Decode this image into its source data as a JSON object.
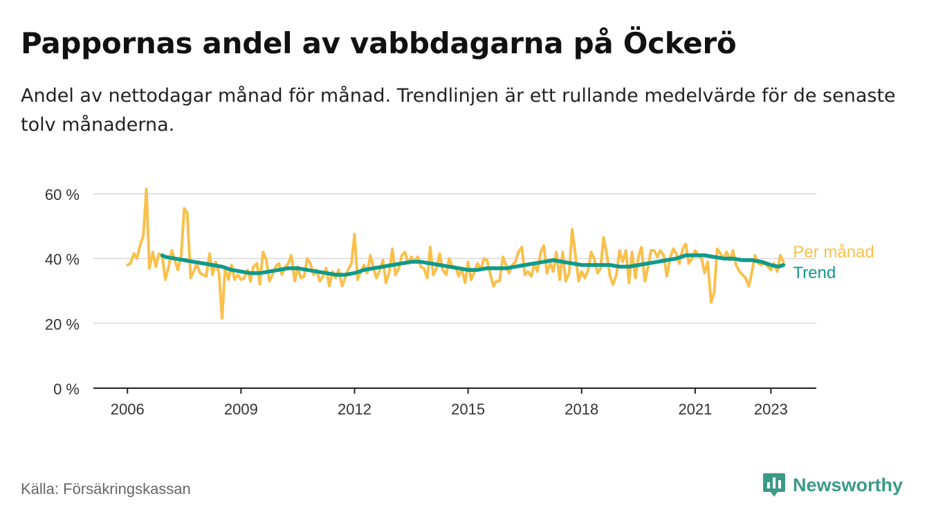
{
  "header": {
    "title": "Pappornas andel av vabbdagarna på Öckerö",
    "subtitle": "Andel av nettodagar månad för månad. Trendlinjen är ett rullande medelvärde för de senaste tolv månaderna."
  },
  "footer": {
    "source": "Källa: Försäkringskassan",
    "brand": "Newsworthy",
    "brand_icon": "bar-chart-bubble-icon",
    "brand_color": "#3a9a86"
  },
  "chart_data": {
    "type": "line",
    "x_range": [
      2005.1,
      2024.2
    ],
    "ylim": [
      0,
      60
    ],
    "y_ticks": [
      0,
      20,
      40,
      60
    ],
    "y_tick_labels": [
      "0 %",
      "20 %",
      "40 %",
      "60 %"
    ],
    "x_ticks": [
      2006,
      2009,
      2012,
      2015,
      2018,
      2021,
      2023
    ],
    "x_tick_labels": [
      "2006",
      "2009",
      "2012",
      "2015",
      "2018",
      "2021",
      "2023"
    ],
    "grid": "horizontal",
    "legend": "direct labels at line ends (right)",
    "series": [
      {
        "name": "Per månad",
        "color": "#f9c04c",
        "points": [
          [
            2006.0,
            38
          ],
          [
            2006.08,
            38.5
          ],
          [
            2006.17,
            41.5
          ],
          [
            2006.25,
            40
          ],
          [
            2006.33,
            44
          ],
          [
            2006.42,
            47
          ],
          [
            2006.5,
            61.5
          ],
          [
            2006.58,
            37
          ],
          [
            2006.67,
            42
          ],
          [
            2006.75,
            37.5
          ],
          [
            2006.83,
            41.5
          ],
          [
            2006.92,
            40.5
          ],
          [
            2007.0,
            33.5
          ],
          [
            2007.08,
            37
          ],
          [
            2007.17,
            42.5
          ],
          [
            2007.25,
            39.5
          ],
          [
            2007.33,
            36.5
          ],
          [
            2007.42,
            41
          ],
          [
            2007.5,
            55.5
          ],
          [
            2007.58,
            54
          ],
          [
            2007.67,
            34
          ],
          [
            2007.75,
            36
          ],
          [
            2007.83,
            38.5
          ],
          [
            2007.92,
            35.5
          ],
          [
            2008.0,
            35
          ],
          [
            2008.08,
            34.5
          ],
          [
            2008.17,
            41.5
          ],
          [
            2008.25,
            35
          ],
          [
            2008.33,
            39
          ],
          [
            2008.42,
            35.5
          ],
          [
            2008.5,
            21.5
          ],
          [
            2008.58,
            37
          ],
          [
            2008.67,
            33.5
          ],
          [
            2008.75,
            38
          ],
          [
            2008.83,
            33.5
          ],
          [
            2008.92,
            35
          ],
          [
            2009.0,
            33.5
          ],
          [
            2009.08,
            34
          ],
          [
            2009.17,
            36.5
          ],
          [
            2009.25,
            33
          ],
          [
            2009.33,
            37.5
          ],
          [
            2009.42,
            38.5
          ],
          [
            2009.5,
            32
          ],
          [
            2009.58,
            42
          ],
          [
            2009.67,
            39.5
          ],
          [
            2009.75,
            33
          ],
          [
            2009.83,
            35
          ],
          [
            2009.92,
            37.5
          ],
          [
            2010.0,
            38.5
          ],
          [
            2010.08,
            35
          ],
          [
            2010.17,
            37.5
          ],
          [
            2010.25,
            38.5
          ],
          [
            2010.33,
            41
          ],
          [
            2010.42,
            33
          ],
          [
            2010.5,
            37.5
          ],
          [
            2010.58,
            34
          ],
          [
            2010.67,
            34.5
          ],
          [
            2010.75,
            40
          ],
          [
            2010.83,
            38.5
          ],
          [
            2010.92,
            35
          ],
          [
            2011.0,
            36.5
          ],
          [
            2011.08,
            33
          ],
          [
            2011.17,
            34.5
          ],
          [
            2011.25,
            37
          ],
          [
            2011.33,
            31.5
          ],
          [
            2011.42,
            36
          ],
          [
            2011.5,
            34
          ],
          [
            2011.58,
            36.5
          ],
          [
            2011.67,
            31.5
          ],
          [
            2011.75,
            34
          ],
          [
            2011.83,
            36.5
          ],
          [
            2011.92,
            38.5
          ],
          [
            2012.0,
            47.5
          ],
          [
            2012.08,
            33.5
          ],
          [
            2012.17,
            36
          ],
          [
            2012.25,
            38
          ],
          [
            2012.33,
            35.5
          ],
          [
            2012.42,
            41
          ],
          [
            2012.5,
            37
          ],
          [
            2012.58,
            34
          ],
          [
            2012.67,
            36.5
          ],
          [
            2012.75,
            39.5
          ],
          [
            2012.83,
            32.5
          ],
          [
            2012.92,
            36
          ],
          [
            2013.0,
            43
          ],
          [
            2013.08,
            35
          ],
          [
            2013.17,
            37
          ],
          [
            2013.25,
            41
          ],
          [
            2013.33,
            42
          ],
          [
            2013.42,
            38.5
          ],
          [
            2013.5,
            40.5
          ],
          [
            2013.58,
            39
          ],
          [
            2013.67,
            40.5
          ],
          [
            2013.75,
            37.5
          ],
          [
            2013.83,
            37
          ],
          [
            2013.92,
            34
          ],
          [
            2014.0,
            43.5
          ],
          [
            2014.08,
            35
          ],
          [
            2014.17,
            37
          ],
          [
            2014.25,
            41.5
          ],
          [
            2014.33,
            36.5
          ],
          [
            2014.42,
            35
          ],
          [
            2014.5,
            40
          ],
          [
            2014.58,
            37.5
          ],
          [
            2014.67,
            37.5
          ],
          [
            2014.75,
            34.5
          ],
          [
            2014.83,
            37
          ],
          [
            2014.92,
            32.5
          ],
          [
            2015.0,
            39
          ],
          [
            2015.08,
            33.5
          ],
          [
            2015.17,
            36
          ],
          [
            2015.25,
            38.5
          ],
          [
            2015.33,
            36.5
          ],
          [
            2015.42,
            40
          ],
          [
            2015.5,
            39.5
          ],
          [
            2015.58,
            35.5
          ],
          [
            2015.67,
            31.5
          ],
          [
            2015.75,
            33
          ],
          [
            2015.83,
            33
          ],
          [
            2015.92,
            40.5
          ],
          [
            2016.0,
            38
          ],
          [
            2016.08,
            35.5
          ],
          [
            2016.17,
            38
          ],
          [
            2016.25,
            39
          ],
          [
            2016.33,
            42
          ],
          [
            2016.42,
            43.5
          ],
          [
            2016.5,
            35
          ],
          [
            2016.58,
            36
          ],
          [
            2016.67,
            34.5
          ],
          [
            2016.75,
            38.5
          ],
          [
            2016.83,
            36
          ],
          [
            2016.92,
            42
          ],
          [
            2017.0,
            44
          ],
          [
            2017.08,
            35.5
          ],
          [
            2017.17,
            38.5
          ],
          [
            2017.25,
            36
          ],
          [
            2017.33,
            42
          ],
          [
            2017.42,
            33.5
          ],
          [
            2017.5,
            42
          ],
          [
            2017.58,
            33
          ],
          [
            2017.67,
            35.5
          ],
          [
            2017.75,
            49
          ],
          [
            2017.83,
            41.5
          ],
          [
            2017.92,
            33
          ],
          [
            2018.0,
            36
          ],
          [
            2018.08,
            34
          ],
          [
            2018.17,
            36.5
          ],
          [
            2018.25,
            42
          ],
          [
            2018.33,
            40
          ],
          [
            2018.42,
            35.5
          ],
          [
            2018.5,
            37
          ],
          [
            2018.58,
            46.5
          ],
          [
            2018.67,
            41
          ],
          [
            2018.75,
            34.5
          ],
          [
            2018.83,
            32
          ],
          [
            2018.92,
            35
          ],
          [
            2019.0,
            42.5
          ],
          [
            2019.08,
            39
          ],
          [
            2019.17,
            42.5
          ],
          [
            2019.25,
            32.5
          ],
          [
            2019.33,
            42
          ],
          [
            2019.42,
            34
          ],
          [
            2019.5,
            40.5
          ],
          [
            2019.58,
            43.5
          ],
          [
            2019.67,
            33
          ],
          [
            2019.75,
            37
          ],
          [
            2019.83,
            42.5
          ],
          [
            2019.92,
            42.5
          ],
          [
            2020.0,
            40.5
          ],
          [
            2020.08,
            42.5
          ],
          [
            2020.17,
            41
          ],
          [
            2020.25,
            34.5
          ],
          [
            2020.33,
            40
          ],
          [
            2020.42,
            43
          ],
          [
            2020.5,
            41.5
          ],
          [
            2020.58,
            38.5
          ],
          [
            2020.67,
            43
          ],
          [
            2020.75,
            44.5
          ],
          [
            2020.83,
            38.5
          ],
          [
            2020.92,
            40
          ],
          [
            2021.0,
            42.5
          ],
          [
            2021.08,
            41
          ],
          [
            2021.17,
            40
          ],
          [
            2021.25,
            35.5
          ],
          [
            2021.33,
            39
          ],
          [
            2021.42,
            26.5
          ],
          [
            2021.5,
            29.5
          ],
          [
            2021.58,
            43
          ],
          [
            2021.67,
            41.5
          ],
          [
            2021.75,
            40
          ],
          [
            2021.83,
            42
          ],
          [
            2021.92,
            39.5
          ],
          [
            2022.0,
            42.5
          ],
          [
            2022.08,
            38
          ],
          [
            2022.17,
            36
          ],
          [
            2022.25,
            35
          ],
          [
            2022.33,
            34
          ],
          [
            2022.42,
            31.5
          ],
          [
            2022.5,
            36
          ],
          [
            2022.58,
            41
          ],
          [
            2022.67,
            38.5
          ],
          [
            2022.75,
            38
          ],
          [
            2022.83,
            39
          ],
          [
            2022.92,
            37.5
          ],
          [
            2023.0,
            36.5
          ],
          [
            2023.08,
            38.5
          ],
          [
            2023.17,
            36
          ],
          [
            2023.25,
            41
          ],
          [
            2023.33,
            39
          ]
        ]
      },
      {
        "name": "Trend",
        "color": "#0f9a8a",
        "points": [
          [
            2006.92,
            41
          ],
          [
            2007.0,
            40.5
          ],
          [
            2007.25,
            40
          ],
          [
            2007.5,
            39.5
          ],
          [
            2007.75,
            39
          ],
          [
            2008.0,
            38.5
          ],
          [
            2008.25,
            38
          ],
          [
            2008.5,
            37.5
          ],
          [
            2008.75,
            36.5
          ],
          [
            2009.0,
            36
          ],
          [
            2009.25,
            35.5
          ],
          [
            2009.5,
            35.5
          ],
          [
            2009.75,
            36
          ],
          [
            2010.0,
            36.5
          ],
          [
            2010.25,
            37
          ],
          [
            2010.5,
            37
          ],
          [
            2010.75,
            36.5
          ],
          [
            2011.0,
            36
          ],
          [
            2011.25,
            35.5
          ],
          [
            2011.5,
            35
          ],
          [
            2011.75,
            35
          ],
          [
            2012.0,
            35.5
          ],
          [
            2012.25,
            36.5
          ],
          [
            2012.5,
            37
          ],
          [
            2012.75,
            37.5
          ],
          [
            2013.0,
            38
          ],
          [
            2013.25,
            38.5
          ],
          [
            2013.5,
            39
          ],
          [
            2013.75,
            39
          ],
          [
            2014.0,
            38.5
          ],
          [
            2014.25,
            38
          ],
          [
            2014.5,
            37.5
          ],
          [
            2014.75,
            37
          ],
          [
            2015.0,
            36.5
          ],
          [
            2015.25,
            36.5
          ],
          [
            2015.5,
            37
          ],
          [
            2015.75,
            37
          ],
          [
            2016.0,
            37
          ],
          [
            2016.25,
            37.5
          ],
          [
            2016.5,
            38
          ],
          [
            2016.75,
            38.5
          ],
          [
            2017.0,
            39
          ],
          [
            2017.25,
            39.5
          ],
          [
            2017.5,
            39
          ],
          [
            2017.75,
            38.5
          ],
          [
            2018.0,
            38
          ],
          [
            2018.25,
            38
          ],
          [
            2018.5,
            38
          ],
          [
            2018.75,
            38
          ],
          [
            2019.0,
            37.5
          ],
          [
            2019.25,
            37.5
          ],
          [
            2019.5,
            38
          ],
          [
            2019.75,
            38.5
          ],
          [
            2020.0,
            39
          ],
          [
            2020.25,
            39.5
          ],
          [
            2020.5,
            40
          ],
          [
            2020.75,
            41
          ],
          [
            2021.0,
            41
          ],
          [
            2021.25,
            41
          ],
          [
            2021.5,
            40.5
          ],
          [
            2021.75,
            40
          ],
          [
            2022.0,
            40
          ],
          [
            2022.25,
            39.5
          ],
          [
            2022.5,
            39.5
          ],
          [
            2022.75,
            39
          ],
          [
            2023.0,
            38
          ],
          [
            2023.2,
            37.5
          ],
          [
            2023.33,
            38
          ]
        ]
      }
    ]
  }
}
